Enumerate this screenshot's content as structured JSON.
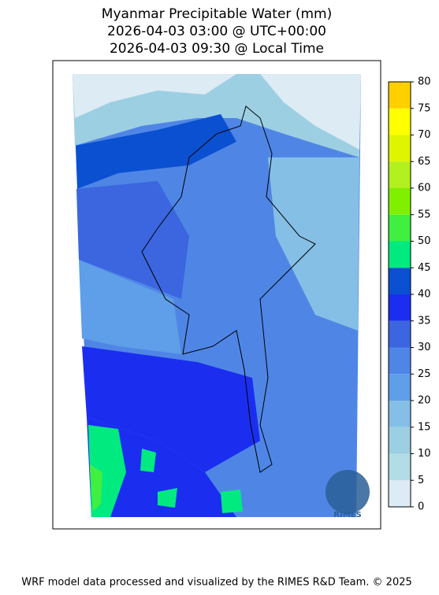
{
  "title": [
    "Myanmar Precipitable Water (mm)",
    "2026-04-03 03:00 @ UTC+00:00",
    "2026-04-03 09:30 @ Local Time"
  ],
  "colorbar": {
    "ticks": [
      0,
      5,
      10,
      15,
      20,
      25,
      30,
      35,
      40,
      45,
      50,
      55,
      60,
      65,
      70,
      75,
      80
    ],
    "colors": [
      "#dcebf4",
      "#b2dce6",
      "#9dcfe3",
      "#86bfe6",
      "#5f9ee8",
      "#4f86e6",
      "#3b66e0",
      "#1b2ef0",
      "#0a50d0",
      "#00ea80",
      "#40ef40",
      "#80f000",
      "#b2f020",
      "#dff500",
      "#ffff00",
      "#ffd000"
    ]
  },
  "logo": "RIMES",
  "footer": "WRF model data processed and visualized by the RIMES R&D Team. © 2025"
}
